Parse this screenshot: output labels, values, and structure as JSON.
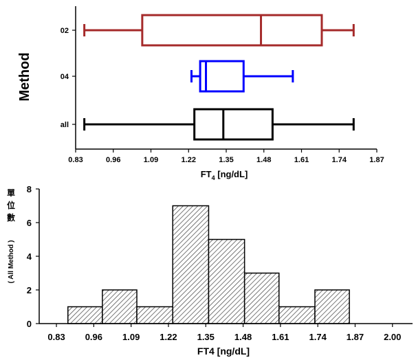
{
  "chart_data": [
    {
      "type": "boxplot",
      "ylabel": "Method",
      "xlabel_main": "FT",
      "xlabel_sub": "4",
      "xlabel_tail": " [ng/dL]",
      "xlim": [
        0.83,
        1.87
      ],
      "xticks": [
        "0.83",
        "0.96",
        "1.09",
        "1.22",
        "1.35",
        "1.48",
        "1.61",
        "1.74",
        "1.87"
      ],
      "boxes": [
        {
          "name": "02",
          "color": "#a52a2a",
          "min": 0.86,
          "q1": 1.06,
          "median": 1.47,
          "q3": 1.68,
          "max": 1.79
        },
        {
          "name": "04",
          "color": "#0000ff",
          "min": 1.23,
          "q1": 1.26,
          "median": 1.28,
          "q3": 1.41,
          "max": 1.58
        },
        {
          "name": "all",
          "color": "#000000",
          "min": 0.86,
          "q1": 1.24,
          "median": 1.34,
          "q3": 1.51,
          "max": 1.79
        }
      ]
    },
    {
      "type": "histogram",
      "ylabel_chars": [
        "單",
        "位",
        "數"
      ],
      "ylabel_sub": "( All Method )",
      "xlabel": "FT4 [ng/dL]",
      "xlim": [
        0.83,
        2.0
      ],
      "ylim": [
        0,
        8
      ],
      "xticks": [
        "0.83",
        "0.96",
        "1.09",
        "1.22",
        "1.35",
        "1.48",
        "1.61",
        "1.74",
        "1.87",
        "2.00"
      ],
      "yticks": [
        "0",
        "2",
        "4",
        "6",
        "8"
      ],
      "bins": [
        {
          "start": 0.87,
          "end": 0.99,
          "count": 1
        },
        {
          "start": 0.99,
          "end": 1.11,
          "count": 2
        },
        {
          "start": 1.11,
          "end": 1.235,
          "count": 1
        },
        {
          "start": 1.235,
          "end": 1.36,
          "count": 7
        },
        {
          "start": 1.36,
          "end": 1.485,
          "count": 5
        },
        {
          "start": 1.485,
          "end": 1.605,
          "count": 3
        },
        {
          "start": 1.605,
          "end": 1.73,
          "count": 1
        },
        {
          "start": 1.73,
          "end": 1.85,
          "count": 2
        }
      ]
    }
  ]
}
